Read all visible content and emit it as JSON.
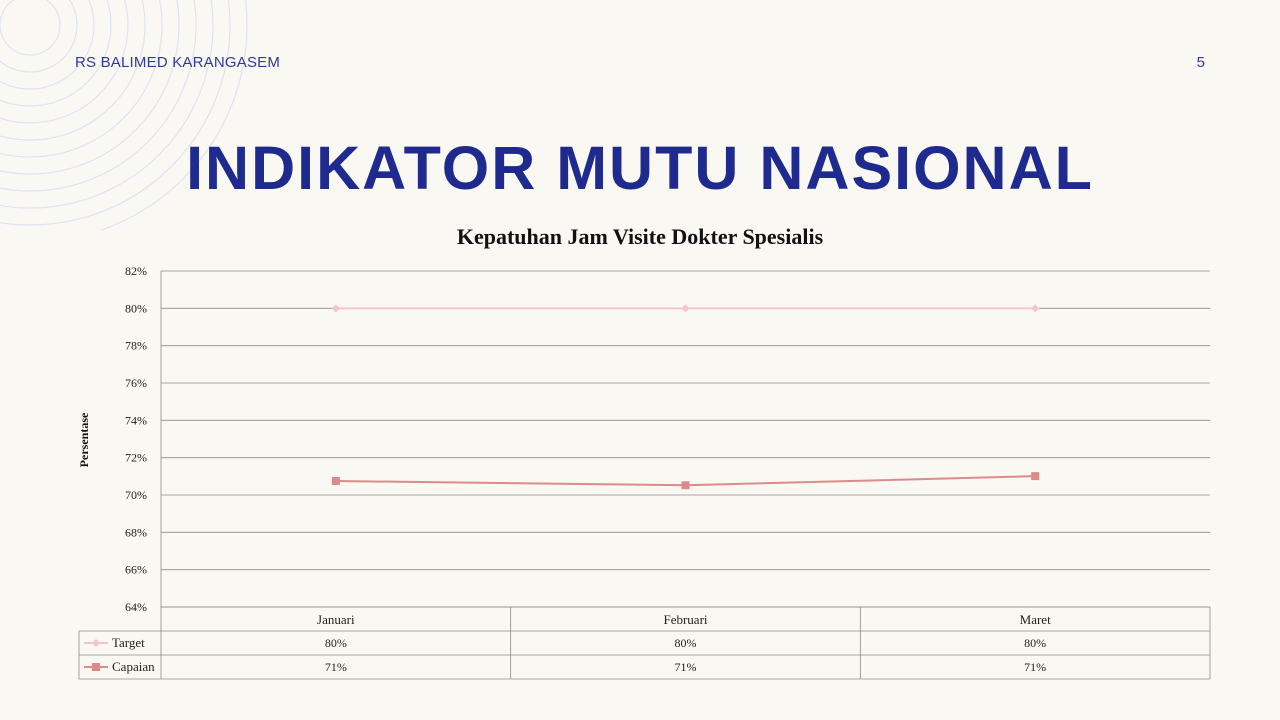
{
  "header": {
    "org_name": "RS BALIMED KARANGASEM",
    "page_number": "5"
  },
  "main_title": "INDIKATOR MUTU NASIONAL",
  "colors": {
    "title": "#1f2a8f",
    "target": "#f2c6cb",
    "capaian": "#dc8a8a",
    "grid": "#8c8c8c"
  },
  "chart_data": {
    "type": "line",
    "title": "Kepatuhan Jam Visite Dokter Spesialis",
    "ylabel": "Persentase",
    "xlabel": "",
    "categories": [
      "Januari",
      "Februari",
      "Maret"
    ],
    "ylim": [
      0.64,
      0.82
    ],
    "ytick_step": 0.02,
    "yticks": [
      "82%",
      "80%",
      "78%",
      "76%",
      "74%",
      "72%",
      "70%",
      "68%",
      "66%",
      "64%"
    ],
    "grid": true,
    "legend": "data-table",
    "series": [
      {
        "name": "Target",
        "values": [
          0.8,
          0.8,
          0.8
        ],
        "labels": [
          "80%",
          "80%",
          "80%"
        ],
        "marker": "diamond",
        "color": "#f2c6cb"
      },
      {
        "name": "Capaian",
        "values": [
          0.7075,
          0.7052,
          0.7101
        ],
        "labels": [
          "71%",
          "71%",
          "71%"
        ],
        "marker": "square",
        "color": "#dc8a8a"
      }
    ]
  }
}
